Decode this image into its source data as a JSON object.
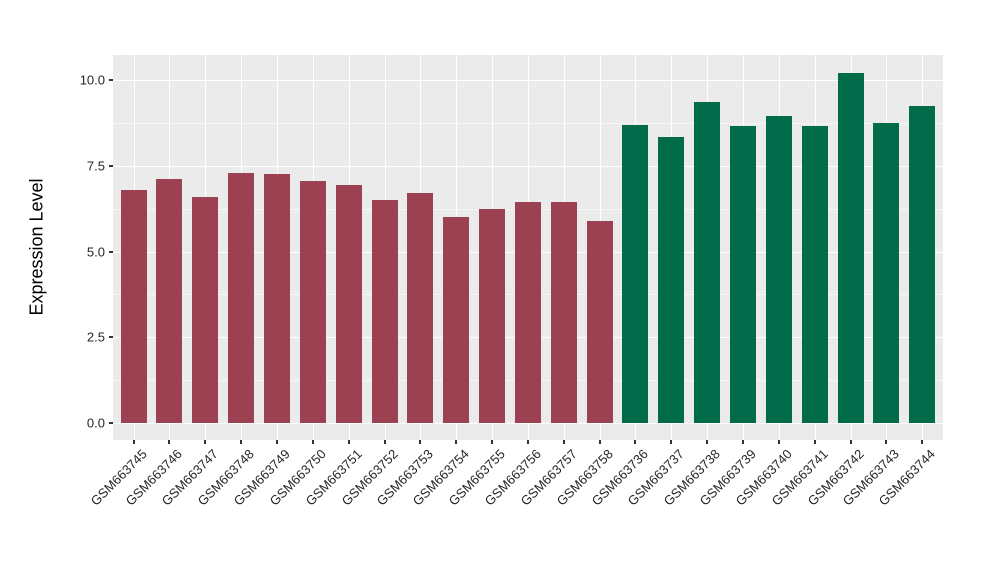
{
  "figure": {
    "background": "#FFFFFF",
    "panel_background": "#EBEBEB",
    "gridline_color": "#FFFFFF",
    "tick_color": "#333333",
    "text_color": "#262626"
  },
  "chart_data": {
    "type": "bar",
    "title": "",
    "xlabel": "",
    "ylabel": "Expression Level",
    "ylim": [
      0,
      10.7
    ],
    "ytick_values": [
      0,
      2.5,
      5,
      7.5,
      10
    ],
    "ytick_labels": [
      "0.0",
      "2.5",
      "5.0",
      "7.5",
      "10.0"
    ],
    "minor_grid_values": [
      1.25,
      3.75,
      6.25,
      8.75
    ],
    "grid": "white major+minor horizontal lines, white vertical line at each category, on gray panel",
    "legend_position": "none",
    "x_tick_label_rotation_deg": 45,
    "categories": [
      "GSM663745",
      "GSM663746",
      "GSM663747",
      "GSM663748",
      "GSM663749",
      "GSM663750",
      "GSM663751",
      "GSM663752",
      "GSM663753",
      "GSM663754",
      "GSM663755",
      "GSM663756",
      "GSM663757",
      "GSM663758",
      "GSM663736",
      "GSM663737",
      "GSM663738",
      "GSM663739",
      "GSM663740",
      "GSM663741",
      "GSM663742",
      "GSM663743",
      "GSM663744"
    ],
    "values": [
      6.8,
      7.1,
      6.6,
      7.3,
      7.25,
      7.05,
      6.95,
      6.5,
      6.7,
      6.0,
      6.25,
      6.45,
      6.45,
      5.9,
      8.7,
      8.35,
      9.35,
      8.65,
      8.95,
      8.65,
      10.2,
      8.75,
      9.25
    ],
    "groups": [
      "group1",
      "group1",
      "group1",
      "group1",
      "group1",
      "group1",
      "group1",
      "group1",
      "group1",
      "group1",
      "group1",
      "group1",
      "group1",
      "group1",
      "group2",
      "group2",
      "group2",
      "group2",
      "group2",
      "group2",
      "group2",
      "group2",
      "group2"
    ],
    "group_colors": {
      "group1": "#9C4152",
      "group2": "#016B4A"
    }
  }
}
